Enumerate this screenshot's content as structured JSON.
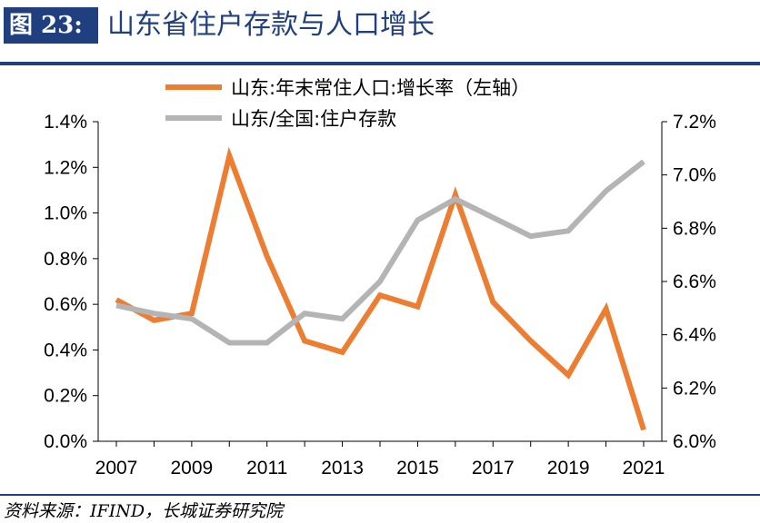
{
  "header": {
    "figure_label": "图 23:",
    "title": "山东省住户存款与人口增长"
  },
  "source": "资料来源：IFIND，长城证券研究院",
  "chart_data": {
    "type": "line",
    "title": "",
    "x": [
      2007,
      2008,
      2009,
      2010,
      2011,
      2012,
      2013,
      2014,
      2015,
      2016,
      2017,
      2018,
      2019,
      2020,
      2021
    ],
    "x_tick_labels": [
      "2007",
      "2009",
      "2011",
      "2013",
      "2015",
      "2017",
      "2019",
      "2021"
    ],
    "y_left": {
      "min": 0.0,
      "max": 1.4,
      "ticks": [
        "0.0%",
        "0.2%",
        "0.4%",
        "0.6%",
        "0.8%",
        "1.0%",
        "1.2%",
        "1.4%"
      ]
    },
    "y_right": {
      "min": 6.0,
      "max": 7.2,
      "ticks": [
        "6.0%",
        "6.2%",
        "6.4%",
        "6.6%",
        "6.8%",
        "7.0%",
        "7.2%"
      ]
    },
    "grid": false,
    "legend_position": "top",
    "series": [
      {
        "name": "山东:年末常住人口:增长率（左轴）",
        "axis": "left",
        "color": "#ed7d31",
        "values": [
          0.62,
          0.53,
          0.56,
          1.25,
          0.81,
          0.44,
          0.39,
          0.64,
          0.59,
          1.08,
          0.61,
          0.44,
          0.29,
          0.58,
          0.05
        ]
      },
      {
        "name": "山东/全国:住户存款",
        "axis": "right",
        "color": "#b4b4b4",
        "values": [
          6.51,
          6.48,
          6.46,
          6.37,
          6.37,
          6.48,
          6.46,
          6.6,
          6.83,
          6.91,
          6.84,
          6.77,
          6.79,
          6.94,
          7.05
        ]
      }
    ]
  }
}
